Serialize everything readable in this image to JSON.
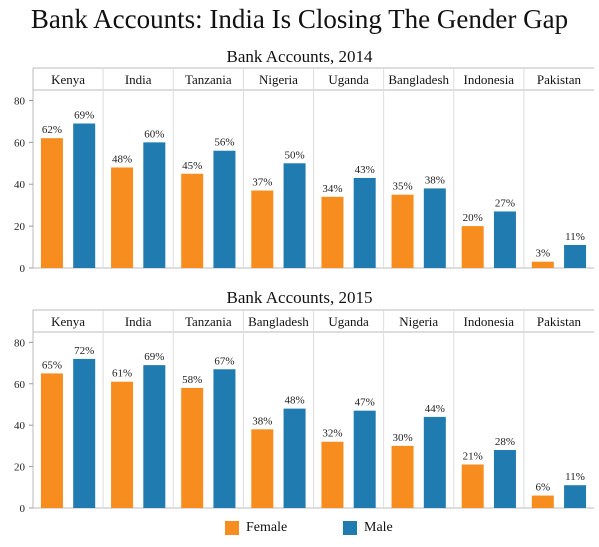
{
  "main_title": "Bank Accounts: India Is Closing The Gender Gap",
  "legend": {
    "female": "Female",
    "male": "Male"
  },
  "colors": {
    "female": "#f68d1e",
    "male": "#1f7bb0"
  },
  "chart_data": [
    {
      "type": "bar",
      "title": "Bank Accounts, 2014",
      "categories": [
        "Kenya",
        "India",
        "Tanzania",
        "Nigeria",
        "Uganda",
        "Bangladesh",
        "Indonesia",
        "Pakistan"
      ],
      "series": [
        {
          "name": "Female",
          "values": [
            62,
            48,
            45,
            37,
            34,
            35,
            20,
            3
          ]
        },
        {
          "name": "Male",
          "values": [
            69,
            60,
            56,
            50,
            43,
            38,
            27,
            11
          ]
        }
      ],
      "yticks": [
        0,
        20,
        40,
        60,
        80
      ],
      "ylim": [
        0,
        85
      ],
      "value_suffix": "%"
    },
    {
      "type": "bar",
      "title": "Bank Accounts, 2015",
      "categories": [
        "Kenya",
        "India",
        "Tanzania",
        "Bangladesh",
        "Uganda",
        "Nigeria",
        "Indonesia",
        "Pakistan"
      ],
      "series": [
        {
          "name": "Female",
          "values": [
            65,
            61,
            58,
            38,
            32,
            30,
            21,
            6
          ]
        },
        {
          "name": "Male",
          "values": [
            72,
            69,
            67,
            48,
            47,
            44,
            28,
            11
          ]
        }
      ],
      "yticks": [
        0,
        20,
        40,
        60,
        80
      ],
      "ylim": [
        0,
        85
      ],
      "value_suffix": "%"
    }
  ]
}
